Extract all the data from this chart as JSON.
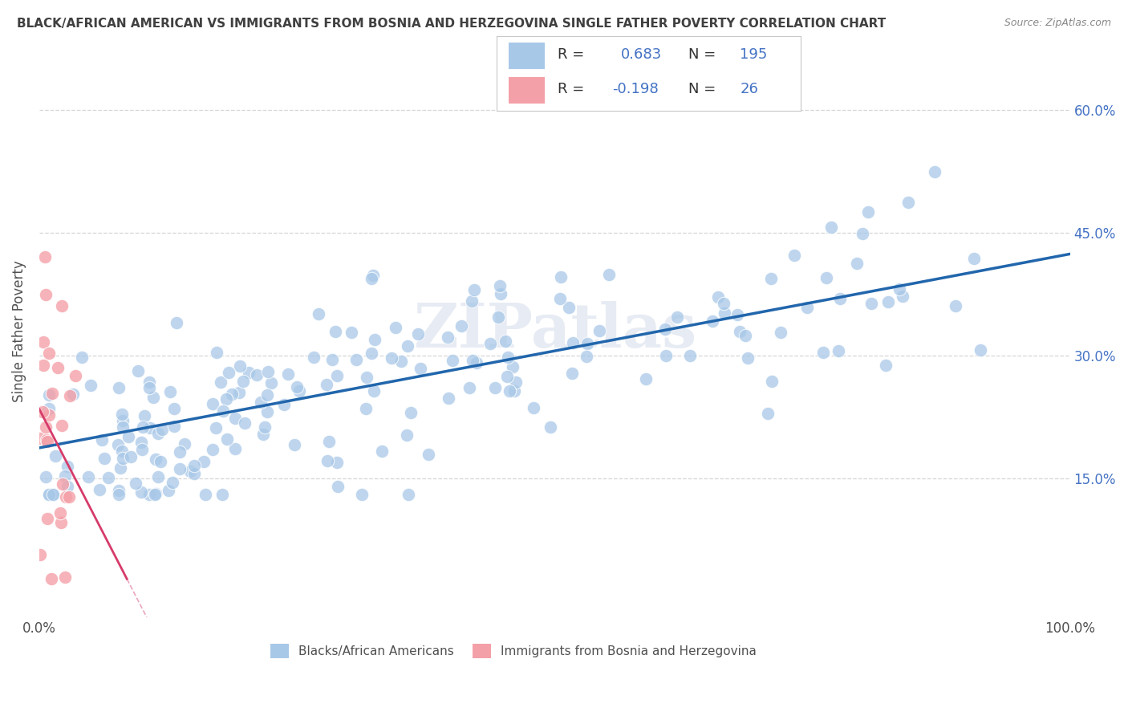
{
  "title": "BLACK/AFRICAN AMERICAN VS IMMIGRANTS FROM BOSNIA AND HERZEGOVINA SINGLE FATHER POVERTY CORRELATION CHART",
  "source": "Source: ZipAtlas.com",
  "ylabel": "Single Father Poverty",
  "yticks": [
    0.15,
    0.3,
    0.45,
    0.6
  ],
  "ytick_labels": [
    "15.0%",
    "30.0%",
    "45.0%",
    "60.0%"
  ],
  "xlim": [
    0.0,
    1.0
  ],
  "ylim": [
    -0.02,
    0.68
  ],
  "blue_R": 0.683,
  "blue_N": 195,
  "pink_R": -0.198,
  "pink_N": 26,
  "blue_color": "#a8c8e8",
  "pink_color": "#f4a0a8",
  "blue_line_color": "#2166ac",
  "pink_line_color": "#d63b6a",
  "watermark": "ZIPatlas",
  "background_color": "#ffffff",
  "grid_color": "#cccccc",
  "legend_text_color": "#4472c4",
  "title_color": "#404040",
  "source_color": "#888888"
}
